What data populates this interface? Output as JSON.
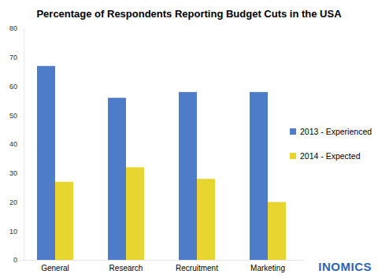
{
  "chart_data": {
    "type": "bar",
    "title": "Percentage of Respondents Reporting Budget Cuts in the USA",
    "categories": [
      "General",
      "Research",
      "Recruitment",
      "Marketing"
    ],
    "series": [
      {
        "name": "2013 - Experienced",
        "color": "#4f7cc8",
        "values": [
          67,
          56,
          58,
          58
        ]
      },
      {
        "name": "2014 - Expected",
        "color": "#e8d630",
        "values": [
          27,
          32,
          28,
          20
        ]
      }
    ],
    "ylim": [
      0,
      80
    ],
    "yticks": [
      0,
      10,
      20,
      30,
      40,
      50,
      60,
      70,
      80
    ],
    "grid": false,
    "legend": "right",
    "annotations": [
      "INOMICS"
    ]
  }
}
